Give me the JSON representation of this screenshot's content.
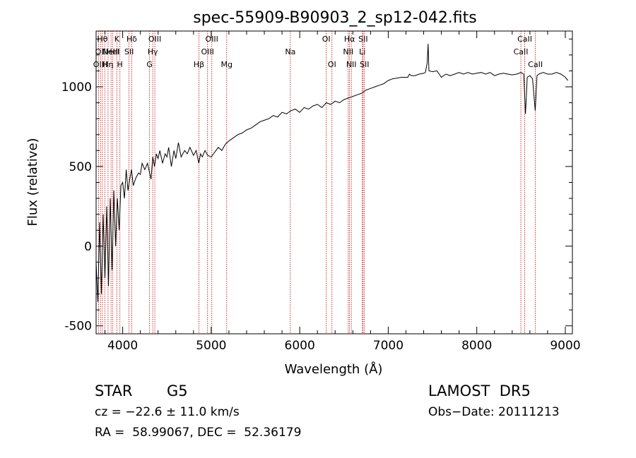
{
  "chart_data": {
    "type": "line",
    "title": "spec-55909-B90903_2_sp12-042.fits",
    "xlabel": "Wavelength (Å)",
    "ylabel": "Flux (relative)",
    "xlim": [
      3700,
      9080
    ],
    "ylim": [
      -550,
      1350
    ],
    "xticks": [
      4000,
      5000,
      6000,
      7000,
      8000,
      9000
    ],
    "yticks": [
      -500,
      0,
      500,
      1000
    ],
    "line_color": "#000000",
    "marker_color": "#c00000",
    "series": [
      {
        "x": [
          3700,
          3720,
          3740,
          3760,
          3780,
          3800,
          3820,
          3840,
          3860,
          3880,
          3900,
          3920,
          3940,
          3960,
          3980,
          4000,
          4020,
          4040,
          4060,
          4080,
          4100,
          4120,
          4150,
          4180,
          4200,
          4220,
          4250,
          4280,
          4300,
          4320,
          4340,
          4360,
          4380,
          4400,
          4420,
          4450,
          4480,
          4500,
          4520,
          4550,
          4580,
          4600,
          4630,
          4660,
          4700,
          4730,
          4760,
          4800,
          4830,
          4860,
          4880,
          4900,
          4930,
          4960,
          5000,
          5040,
          5080,
          5120,
          5160,
          5200,
          5250,
          5300,
          5350,
          5400,
          5450,
          5500,
          5550,
          5600,
          5650,
          5700,
          5750,
          5800,
          5850,
          5900,
          5950,
          6000,
          6050,
          6100,
          6150,
          6200,
          6250,
          6300,
          6350,
          6400,
          6450,
          6500,
          6550,
          6600,
          6650,
          6700,
          6750,
          6800,
          6850,
          6900,
          6950,
          7000,
          7050,
          7100,
          7150,
          7200,
          7220,
          7240,
          7260,
          7300,
          7350,
          7400,
          7420,
          7440,
          7450,
          7460,
          7500,
          7550,
          7600,
          7650,
          7700,
          7750,
          7800,
          7850,
          7900,
          7950,
          8000,
          8050,
          8100,
          8150,
          8200,
          8250,
          8300,
          8350,
          8400,
          8450,
          8500,
          8530,
          8550,
          8570,
          8600,
          8630,
          8660,
          8680,
          8700,
          8750,
          8800,
          8850,
          8900,
          8950,
          9000,
          9030
        ],
        "y": [
          -100,
          -350,
          150,
          -300,
          200,
          -200,
          250,
          -250,
          300,
          -150,
          350,
          0,
          300,
          100,
          380,
          400,
          300,
          480,
          350,
          420,
          480,
          380,
          430,
          460,
          450,
          520,
          480,
          520,
          470,
          420,
          560,
          500,
          580,
          550,
          600,
          520,
          580,
          560,
          620,
          500,
          600,
          550,
          650,
          560,
          600,
          580,
          620,
          570,
          600,
          520,
          580,
          560,
          600,
          570,
          560,
          590,
          620,
          600,
          640,
          660,
          680,
          700,
          710,
          730,
          740,
          760,
          780,
          790,
          800,
          820,
          810,
          840,
          830,
          850,
          860,
          840,
          870,
          860,
          880,
          890,
          870,
          900,
          890,
          910,
          900,
          920,
          930,
          940,
          950,
          960,
          980,
          990,
          1000,
          1010,
          1020,
          1040,
          1050,
          1055,
          1060,
          1060,
          1060,
          1080,
          1070,
          1070,
          1080,
          1085,
          1090,
          1150,
          1270,
          1100,
          1095,
          1100,
          1060,
          1080,
          1070,
          1080,
          1090,
          1080,
          1090,
          1080,
          1085,
          1090,
          1080,
          1090,
          1070,
          1080,
          1085,
          1080,
          1075,
          1080,
          1090,
          1080,
          830,
          1060,
          1070,
          1050,
          850,
          1070,
          1080,
          1090,
          1080,
          1080,
          1090,
          1080,
          1060,
          1040
        ]
      }
    ],
    "lines": [
      {
        "wl": 3727,
        "label": "OII",
        "row": 2
      },
      {
        "wl": 3750,
        "label": "OII",
        "row": 1
      },
      {
        "wl": 3771,
        "label": "Hθ",
        "row": 0
      },
      {
        "wl": 3798,
        "label": "H",
        "row": 2
      },
      {
        "wl": 3835,
        "label": "Hη",
        "row": 2
      },
      {
        "wl": 3869,
        "label": "NeIII",
        "row": 1
      },
      {
        "wl": 3889,
        "label": "HeI",
        "row": 1
      },
      {
        "wl": 3934,
        "label": "K",
        "row": 0
      },
      {
        "wl": 3969,
        "label": "H",
        "row": 2
      },
      {
        "wl": 4072,
        "label": "SII",
        "row": 1
      },
      {
        "wl": 4102,
        "label": "Hδ",
        "row": 0
      },
      {
        "wl": 4304,
        "label": "G",
        "row": 2
      },
      {
        "wl": 4340,
        "label": "Hγ",
        "row": 1
      },
      {
        "wl": 4363,
        "label": "OIII",
        "row": 0
      },
      {
        "wl": 4861,
        "label": "Hβ",
        "row": 2
      },
      {
        "wl": 4959,
        "label": "OIII",
        "row": 1
      },
      {
        "wl": 5007,
        "label": "OIII",
        "row": 0
      },
      {
        "wl": 5175,
        "label": "Mg",
        "row": 2
      },
      {
        "wl": 5894,
        "label": "Na",
        "row": 1
      },
      {
        "wl": 6300,
        "label": "OI",
        "row": 0
      },
      {
        "wl": 6364,
        "label": "OI",
        "row": 2
      },
      {
        "wl": 6548,
        "label": "NII",
        "row": 1
      },
      {
        "wl": 6563,
        "label": "Hα",
        "row": 0
      },
      {
        "wl": 6583,
        "label": "NII",
        "row": 2
      },
      {
        "wl": 6707,
        "label": "Li",
        "row": 1
      },
      {
        "wl": 6716,
        "label": "SII",
        "row": 0
      },
      {
        "wl": 6731,
        "label": "SII",
        "row": 2
      },
      {
        "wl": 8498,
        "label": "CaII",
        "row": 1
      },
      {
        "wl": 8542,
        "label": "CaII",
        "row": 0
      },
      {
        "wl": 8662,
        "label": "CaII",
        "row": 2
      }
    ]
  },
  "info": {
    "objtype": "STAR",
    "subclass": "G5",
    "survey": "LAMOST  DR5",
    "cz": "cz = −22.6 ± 11.0 km/s",
    "obsdate": "Obs−Date: 20111213",
    "radec": "RA =  58.99067, DEC =  52.36179"
  }
}
